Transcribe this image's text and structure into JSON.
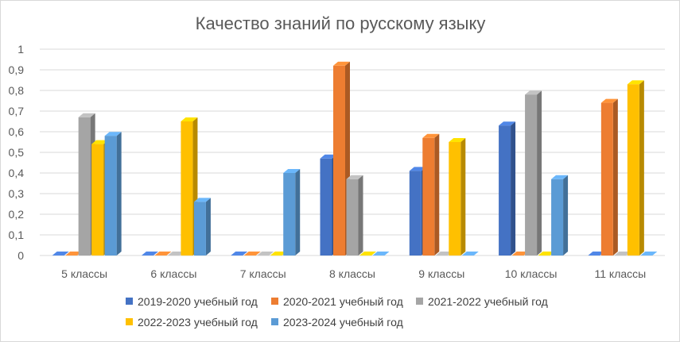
{
  "chart_data": {
    "type": "bar",
    "title": "Качество знаний по русскому языку",
    "categories": [
      "5 классы",
      "6 классы",
      "7 классы",
      "8 классы",
      "9 классы",
      "10 классы",
      "11 классы"
    ],
    "series": [
      {
        "name": "2019-2020 учебный год",
        "color": "#4472c4",
        "values": [
          0,
          0,
          0,
          0.47,
          0.41,
          0.63,
          0
        ]
      },
      {
        "name": "2020-2021 учебный год",
        "color": "#ed7d31",
        "values": [
          0,
          0,
          0,
          0.92,
          0.57,
          0,
          0.74
        ]
      },
      {
        "name": "2021-2022 учебный год",
        "color": "#a5a5a5",
        "values": [
          0.67,
          0,
          0,
          0.37,
          0,
          0.78,
          0
        ]
      },
      {
        "name": "2022-2023 учебный год",
        "color": "#ffc000",
        "values": [
          0.54,
          0.65,
          0,
          0,
          0.55,
          0,
          0.83
        ]
      },
      {
        "name": "2023-2024 учебный год",
        "color": "#5b9bd5",
        "values": [
          0.58,
          0.26,
          0.4,
          0,
          0,
          0.37,
          0
        ]
      }
    ],
    "yticks": [
      "0",
      "0,1",
      "0,2",
      "0,3",
      "0,4",
      "0,5",
      "0,6",
      "0,7",
      "0,8",
      "0,9",
      "1"
    ],
    "ylim": [
      0,
      1
    ],
    "grid": true,
    "legend_position": "bottom",
    "style": "3d-clustered-column"
  }
}
